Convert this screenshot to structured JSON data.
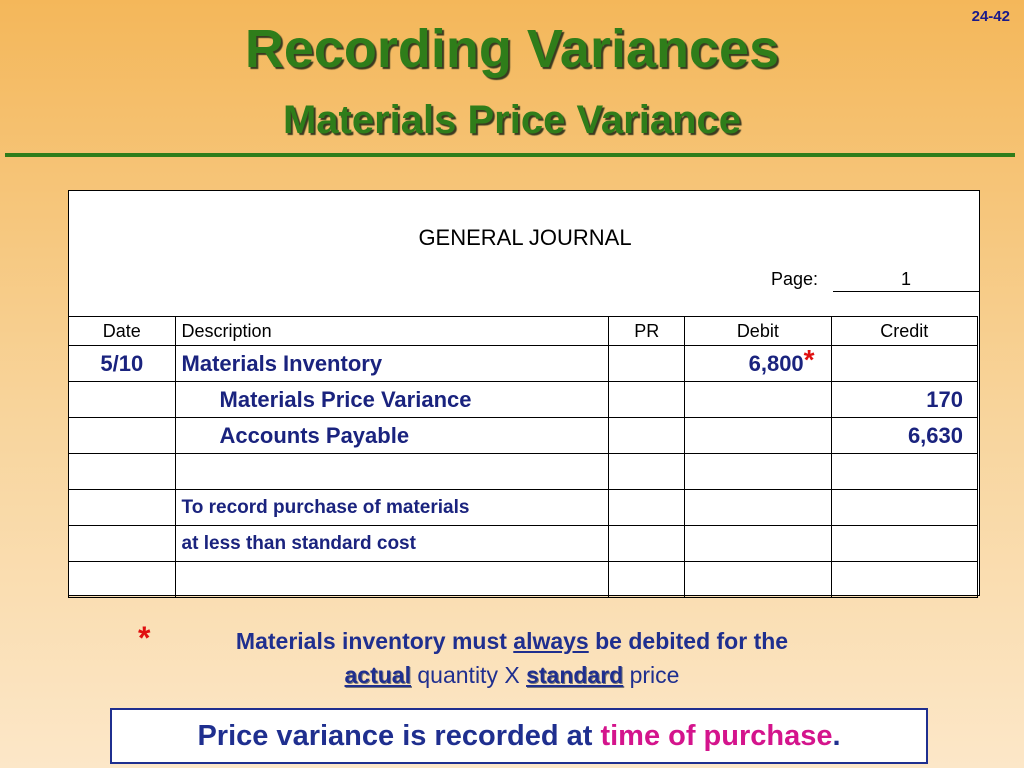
{
  "slide_number": "24-42",
  "title": "Recording Variances",
  "subtitle": "Materials Price Variance",
  "journal": {
    "title": "GENERAL JOURNAL",
    "page_label": "Page:",
    "page_number": "1",
    "headers": [
      "Date",
      "Description",
      "PR",
      "Debit",
      "Credit"
    ],
    "rows": [
      {
        "date": "5/10",
        "description": "Materials Inventory",
        "debit": "6,800",
        "debit_note": "*"
      },
      {
        "description": "Materials Price Variance",
        "credit": "170",
        "indent": true
      },
      {
        "description": "Accounts Payable",
        "credit": "6,630",
        "indent": true
      },
      {},
      {
        "explanation": "To record purchase of materials"
      },
      {
        "explanation": "at less than standard cost"
      },
      {}
    ]
  },
  "footnote": {
    "marker": "*",
    "lines": [
      [
        {
          "text": "Materials inventory must "
        },
        {
          "text": "always",
          "underline": true
        },
        {
          "text": " be debited for the"
        }
      ],
      [
        {
          "text": "actual",
          "underline": true,
          "bold": true
        },
        {
          "text": " quantity X "
        },
        {
          "text": "standard",
          "underline": true,
          "bold": true
        },
        {
          "text": " price"
        }
      ]
    ]
  },
  "callout": [
    {
      "text": "Price variance is recorded at "
    },
    {
      "text": "time of purchase",
      "highlight": true
    },
    {
      "text": "."
    }
  ]
}
